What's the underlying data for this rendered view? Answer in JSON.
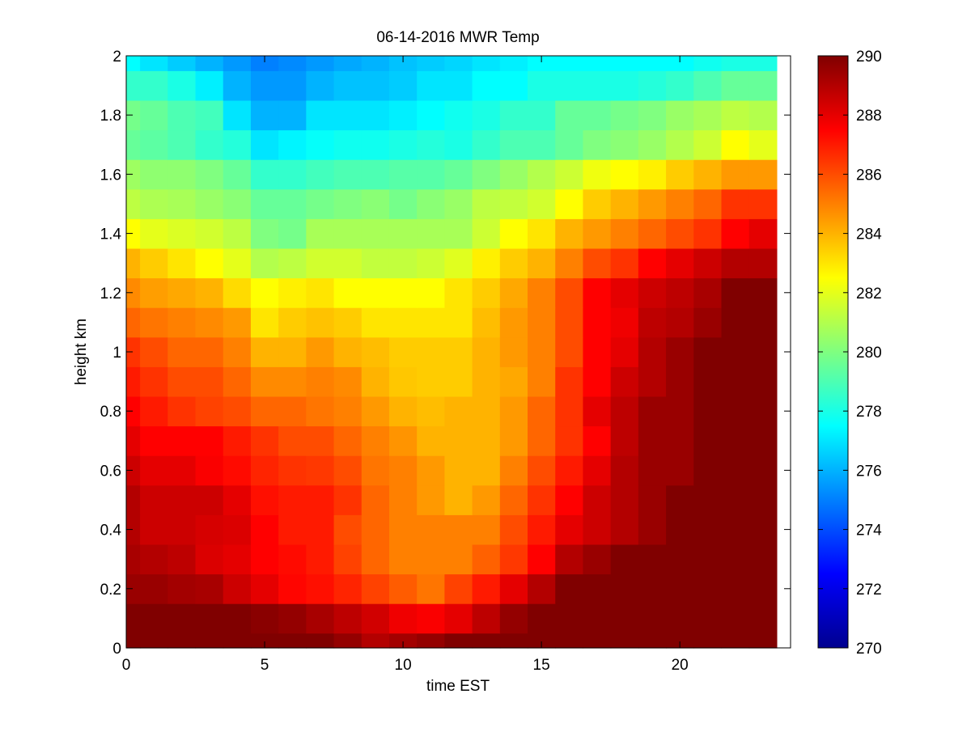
{
  "chart_data": {
    "type": "heatmap",
    "title": "06-14-2016 MWR Temp",
    "xlabel": "time EST",
    "ylabel": "height km",
    "xlim": [
      0,
      24
    ],
    "ylim": [
      0,
      2
    ],
    "xticks": [
      0,
      5,
      10,
      15,
      20
    ],
    "yticks": [
      0,
      0.2,
      0.4,
      0.6,
      0.8,
      1,
      1.2,
      1.4,
      1.6,
      1.8,
      2
    ],
    "colorbar": {
      "min": 270,
      "max": 290,
      "ticks": [
        270,
        272,
        274,
        276,
        278,
        280,
        282,
        284,
        286,
        288,
        290
      ],
      "colormap": "jet"
    },
    "grid": false,
    "x": [
      0,
      1,
      2,
      3,
      4,
      5,
      6,
      7,
      8,
      9,
      10,
      11,
      12,
      13,
      14,
      15,
      16,
      17,
      18,
      19,
      20,
      21,
      22,
      23
    ],
    "y": [
      0.0,
      0.1,
      0.2,
      0.3,
      0.4,
      0.5,
      0.6,
      0.7,
      0.8,
      0.9,
      1.0,
      1.1,
      1.2,
      1.3,
      1.4,
      1.5,
      1.6,
      1.7,
      1.8,
      1.9,
      2.0
    ],
    "z": [
      [
        290,
        290,
        290,
        290,
        290,
        290,
        290,
        290,
        289.6,
        289.0,
        289.3,
        289.6,
        290,
        290,
        290,
        290,
        290,
        290,
        290,
        290,
        290,
        290,
        290,
        290
      ],
      [
        290,
        290,
        290,
        290,
        290,
        289.8,
        289.6,
        289.2,
        288.8,
        288.4,
        287.8,
        287.6,
        288.0,
        288.8,
        289.6,
        290,
        290,
        290,
        290,
        290,
        290,
        290,
        290,
        290
      ],
      [
        289.5,
        289.5,
        289.3,
        289.2,
        288.5,
        288.0,
        287.4,
        287.2,
        286.8,
        286.2,
        285.7,
        285.2,
        286.2,
        287.0,
        288.0,
        289.0,
        290,
        290,
        290,
        290,
        290,
        290,
        290,
        290
      ],
      [
        289.2,
        289.0,
        288.8,
        288.2,
        288.0,
        287.5,
        287.3,
        287.0,
        286.2,
        285.5,
        285.0,
        285.0,
        285.0,
        285.6,
        286.4,
        287.5,
        289.0,
        289.5,
        290,
        290,
        290,
        290,
        290,
        290
      ],
      [
        289.0,
        288.5,
        288.5,
        288.3,
        288.2,
        287.5,
        287.0,
        287.0,
        286.0,
        285.5,
        285.0,
        285.0,
        285.0,
        285.0,
        286.0,
        287.0,
        288.0,
        288.5,
        289.0,
        289.5,
        290,
        290,
        290,
        290
      ],
      [
        289.0,
        288.5,
        288.5,
        288.5,
        288.0,
        287.2,
        287.0,
        287.0,
        286.5,
        285.5,
        285.0,
        284.5,
        284.0,
        284.5,
        285.5,
        286.5,
        287.5,
        288.5,
        289.0,
        289.5,
        290,
        290,
        290,
        290
      ],
      [
        288.5,
        288.0,
        288.0,
        287.6,
        287.3,
        286.8,
        286.5,
        286.4,
        286.0,
        285.2,
        285.0,
        284.5,
        284.0,
        284.0,
        285.0,
        286.0,
        287.0,
        288.0,
        289.0,
        289.5,
        289.5,
        290,
        290,
        290
      ],
      [
        288.0,
        287.5,
        287.5,
        287.5,
        287.0,
        286.5,
        286.0,
        286.0,
        285.5,
        285.0,
        284.6,
        284.0,
        284.0,
        284.0,
        284.5,
        285.5,
        286.5,
        287.5,
        288.8,
        289.5,
        289.5,
        290,
        290,
        290
      ],
      [
        287.5,
        287.0,
        286.5,
        286.2,
        286.0,
        285.5,
        285.5,
        285.2,
        285.0,
        284.5,
        284.0,
        283.8,
        284.0,
        284.0,
        284.5,
        285.5,
        286.5,
        288.0,
        288.8,
        289.5,
        289.5,
        290,
        290,
        290
      ],
      [
        287.0,
        286.5,
        286.0,
        286.0,
        285.5,
        284.8,
        284.8,
        285.0,
        284.8,
        284.0,
        283.6,
        283.5,
        283.5,
        284.0,
        284.2,
        285.0,
        286.5,
        287.5,
        288.5,
        289.0,
        289.5,
        290,
        290,
        290
      ],
      [
        286.5,
        286.0,
        285.5,
        285.5,
        285.0,
        284.0,
        284.0,
        284.5,
        284.0,
        283.8,
        283.5,
        283.5,
        283.5,
        284.0,
        284.5,
        285.0,
        286.0,
        287.5,
        288.0,
        289.0,
        289.5,
        290,
        290,
        290
      ],
      [
        285.5,
        285.2,
        285.0,
        284.8,
        284.5,
        283.0,
        283.5,
        283.7,
        283.5,
        283.0,
        283.0,
        283.0,
        283.0,
        283.8,
        284.5,
        285.0,
        286.0,
        287.5,
        287.8,
        288.8,
        289.0,
        289.5,
        290,
        290
      ],
      [
        284.8,
        284.4,
        284.2,
        284.0,
        283.2,
        282.5,
        282.8,
        283.0,
        282.5,
        282.5,
        282.5,
        282.5,
        283.0,
        283.5,
        284.2,
        285.0,
        286.0,
        287.5,
        288.0,
        288.5,
        288.8,
        289.2,
        290,
        290
      ],
      [
        284.0,
        283.5,
        283.0,
        282.5,
        282.0,
        281.0,
        281.2,
        281.6,
        281.6,
        281.3,
        281.3,
        281.5,
        281.9,
        282.8,
        283.5,
        284.0,
        285.0,
        286.0,
        286.5,
        287.5,
        288.0,
        288.5,
        289.0,
        289.0
      ],
      [
        282.5,
        282.0,
        281.8,
        281.6,
        281.2,
        280.0,
        279.8,
        280.8,
        280.8,
        280.8,
        280.8,
        280.8,
        280.8,
        281.5,
        282.5,
        283.0,
        284.0,
        284.5,
        285.0,
        285.5,
        286.0,
        286.5,
        287.5,
        288.0
      ],
      [
        281.2,
        280.9,
        280.8,
        280.5,
        280.2,
        279.5,
        279.5,
        279.8,
        280.0,
        280.2,
        279.8,
        280.2,
        280.5,
        281.2,
        281.3,
        281.6,
        282.5,
        283.5,
        284.0,
        284.5,
        285.0,
        285.5,
        286.5,
        286.5
      ],
      [
        280.6,
        280.3,
        280.3,
        280.0,
        279.5,
        278.5,
        278.5,
        278.8,
        279.0,
        279.0,
        279.2,
        279.2,
        279.5,
        280.0,
        280.5,
        281.0,
        281.5,
        282.2,
        282.5,
        282.8,
        283.5,
        284.0,
        284.5,
        284.5
      ],
      [
        279.5,
        279.3,
        279.0,
        278.5,
        278.2,
        277.0,
        277.3,
        277.6,
        277.8,
        277.8,
        278.0,
        278.2,
        278.0,
        278.5,
        279.0,
        279.0,
        279.5,
        280.0,
        280.2,
        280.5,
        281.0,
        281.5,
        282.5,
        282.0
      ],
      [
        279.8,
        279.5,
        279.0,
        278.8,
        277.0,
        276.0,
        276.0,
        277.0,
        277.0,
        277.0,
        277.2,
        277.5,
        277.8,
        278.0,
        278.5,
        278.5,
        279.5,
        279.5,
        279.8,
        280.0,
        280.5,
        280.8,
        281.2,
        281.0
      ],
      [
        278.5,
        278.5,
        278.0,
        277.2,
        276.0,
        275.5,
        275.5,
        276.0,
        276.3,
        276.3,
        276.5,
        277.0,
        277.0,
        277.5,
        277.5,
        278.0,
        278.0,
        278.0,
        278.0,
        278.2,
        278.5,
        279.0,
        279.5,
        279.5
      ],
      [
        277.5,
        277.0,
        276.5,
        276.0,
        275.5,
        275.0,
        275.2,
        275.5,
        275.8,
        276.0,
        276.3,
        276.5,
        276.7,
        277.0,
        277.2,
        277.5,
        277.5,
        277.5,
        277.5,
        277.5,
        277.5,
        277.8,
        278.0,
        278.0
      ]
    ]
  }
}
